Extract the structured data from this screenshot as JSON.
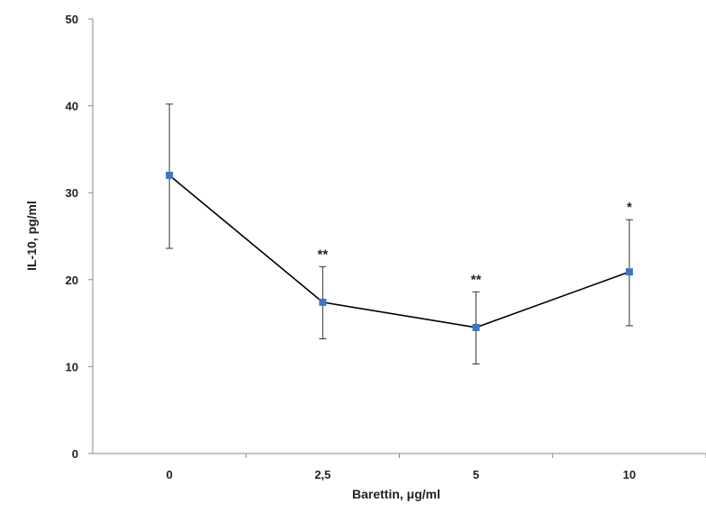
{
  "chart_data": {
    "type": "line",
    "categories": [
      "0",
      "2,5",
      "5",
      "10"
    ],
    "series": [
      {
        "values": [
          32,
          17.4,
          14.5,
          20.9
        ],
        "error_upper": [
          40.2,
          21.5,
          18.6,
          26.9
        ],
        "error_lower": [
          23.6,
          13.2,
          10.3,
          14.7
        ],
        "line_color": "#000000",
        "marker_color": "#4472C4"
      }
    ],
    "annotations": [
      "",
      "**",
      "**",
      "*"
    ],
    "xlabel": "Barettin, μg/ml",
    "ylabel": "IL-10, pg/ml",
    "ylim": [
      0,
      50
    ],
    "yticks": [
      "0",
      "10",
      "20",
      "30",
      "40",
      "50"
    ],
    "grid": false
  }
}
